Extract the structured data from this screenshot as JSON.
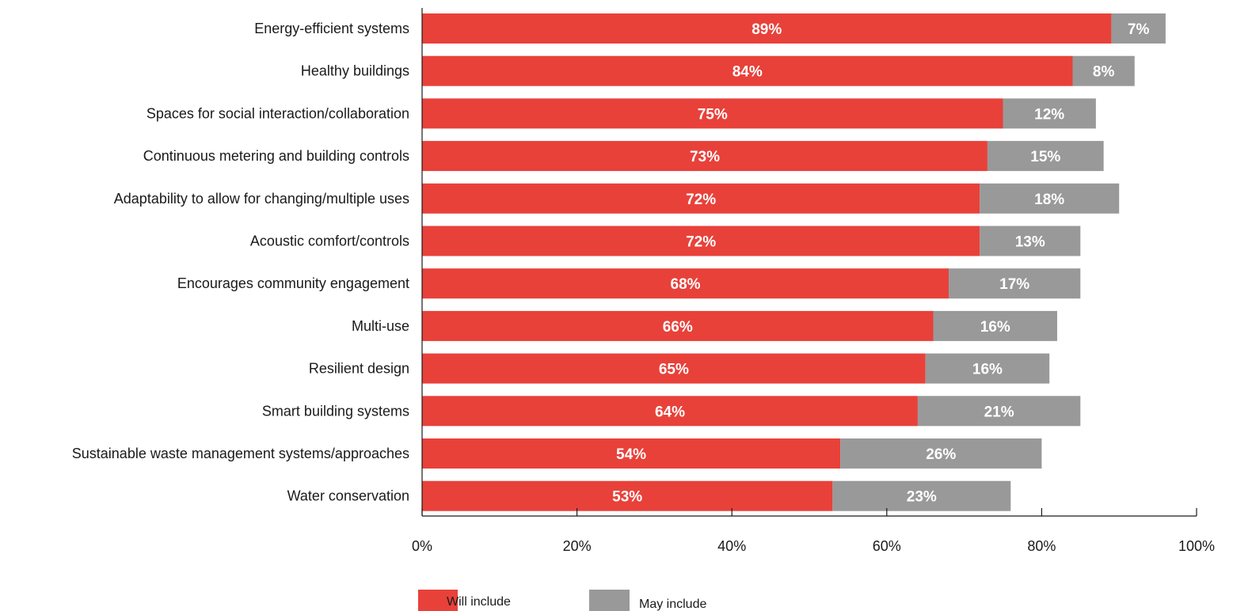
{
  "chart_data": {
    "type": "bar",
    "orientation": "horizontal",
    "stacked": true,
    "categories": [
      "Energy-efficient systems",
      "Healthy buildings",
      "Spaces for social interaction/collaboration",
      "Continuous metering and building controls",
      "Adaptability to allow for changing/multiple uses",
      "Acoustic comfort/controls",
      "Encourages community engagement",
      "Multi-use",
      "Resilient design",
      "Smart building systems",
      "Sustainable waste management systems/approaches",
      "Water conservation"
    ],
    "series": [
      {
        "name": "Will include",
        "color": "#e8413a",
        "values": [
          89,
          84,
          75,
          73,
          72,
          72,
          68,
          66,
          65,
          64,
          54,
          53
        ],
        "labels": [
          "89%",
          "84%",
          "75%",
          "73%",
          "72%",
          "72%",
          "68%",
          "66%",
          "65%",
          "64%",
          "54%",
          "53%"
        ]
      },
      {
        "name": "May include",
        "color": "#999999",
        "values": [
          7,
          8,
          12,
          15,
          18,
          13,
          17,
          16,
          16,
          21,
          26,
          23
        ],
        "labels": [
          "7%",
          "8%",
          "12%",
          "15%",
          "18%",
          "13%",
          "17%",
          "16%",
          "16%",
          "21%",
          "26%",
          "23%"
        ]
      }
    ],
    "xlim": [
      0,
      100
    ],
    "xticks": [
      0,
      20,
      40,
      60,
      80,
      100
    ],
    "xtick_labels": [
      "0%",
      "20%",
      "40%",
      "60%",
      "80%",
      "100%"
    ],
    "title": "",
    "xlabel": "",
    "ylabel": "",
    "grid": false,
    "legend_position": "bottom"
  }
}
